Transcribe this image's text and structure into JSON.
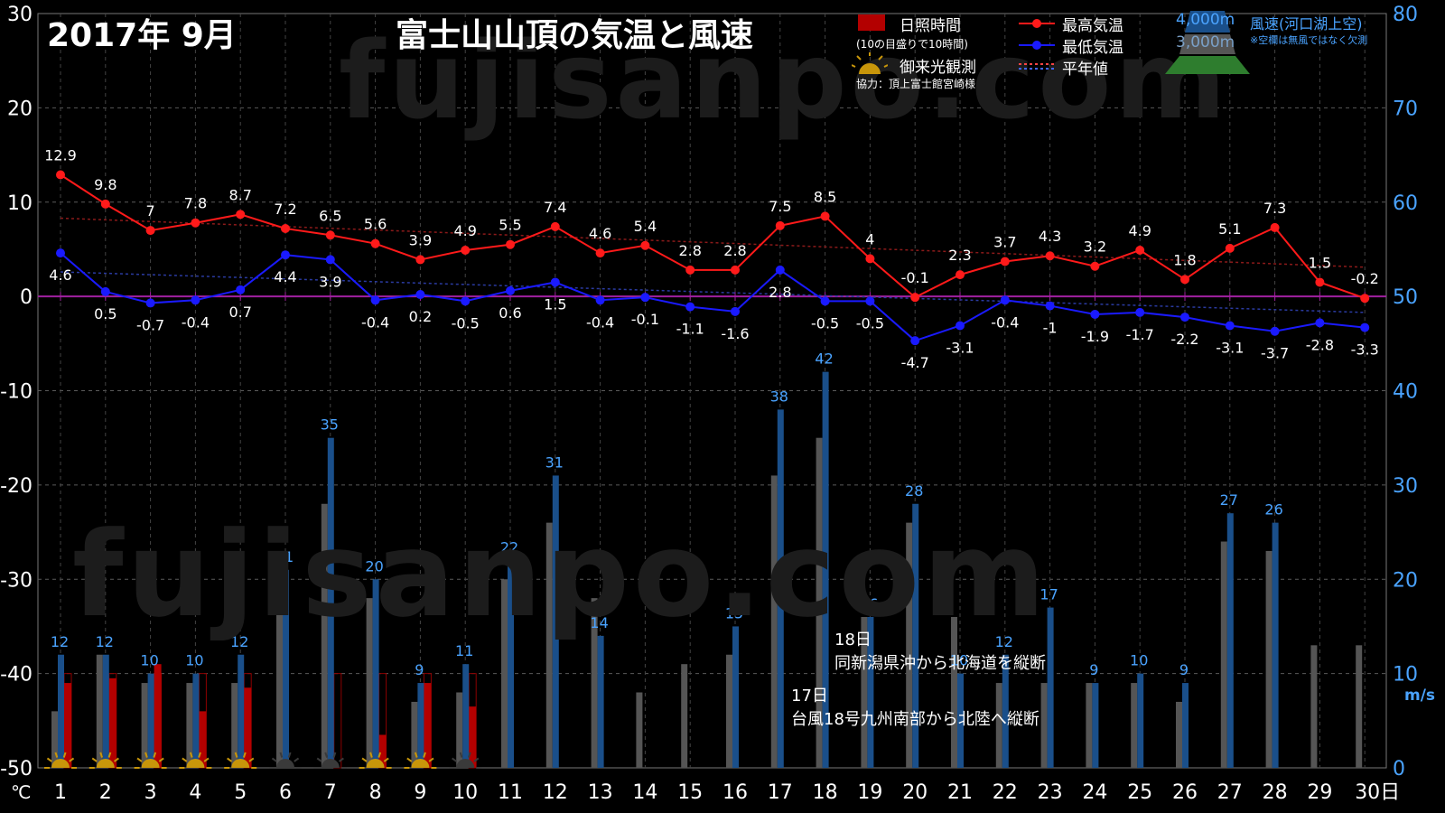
{
  "header": {
    "period": "2017年  9月",
    "title": "富士山山頂の気温と風速"
  },
  "legend": {
    "sunshine": "日照時間",
    "sunshine_note": "(10の目盛りで10時間)",
    "goraiko": "御来光観測",
    "cooperation": "協力：頂上富士館宮崎様",
    "max_temp": "最高気温",
    "min_temp": "最低気温",
    "normal": "平年値",
    "alt_4000": "4,000m",
    "alt_3000": "3,000m",
    "wind": "風速(河口湖上空)",
    "wind_note": "※空欄は無風ではなく欠測",
    "colors": {
      "max": "#ff1a1a",
      "min": "#1a1aff",
      "sunshine": "#b30000",
      "wind4000": "#1a4f8a",
      "wind3000": "#555555",
      "mountain": "#2e7d2e"
    }
  },
  "watermark": "fujisanpo.com",
  "annotations": [
    {
      "line1": "18日",
      "line2": "同新潟県沖から北海道を縦断"
    },
    {
      "line1": "17日",
      "line2": "台風18号九州南部から北陸へ縦断"
    }
  ],
  "chart_data": {
    "type": "line+bar",
    "x_unit_label": "日",
    "left_unit": "℃",
    "right_unit": "m/s",
    "days": [
      1,
      2,
      3,
      4,
      5,
      6,
      7,
      8,
      9,
      10,
      11,
      12,
      13,
      14,
      15,
      16,
      17,
      18,
      19,
      20,
      21,
      22,
      23,
      24,
      25,
      26,
      27,
      28,
      29,
      30
    ],
    "y_left": {
      "min": -50,
      "max": 30,
      "ticks": [
        30,
        20,
        10,
        0,
        -10,
        -20,
        -30,
        -40,
        -50
      ]
    },
    "y_right": {
      "min": 0,
      "max": 80,
      "ticks": [
        80,
        70,
        60,
        50,
        40,
        30,
        20,
        10,
        0
      ]
    },
    "max_temp": [
      12.9,
      9.8,
      7,
      7.8,
      8.7,
      7.2,
      6.5,
      5.6,
      3.9,
      4.9,
      5.5,
      7.4,
      4.6,
      5.4,
      2.8,
      2.8,
      7.5,
      8.5,
      4,
      -0.1,
      2.3,
      3.7,
      4.3,
      3.2,
      4.9,
      1.8,
      5.1,
      7.3,
      1.5,
      -0.2
    ],
    "min_temp": [
      4.6,
      0.5,
      -0.7,
      -0.4,
      0.7,
      4.4,
      3.9,
      -0.4,
      0.2,
      -0.5,
      0.6,
      1.5,
      -0.4,
      -0.1,
      -1.1,
      -1.6,
      2.8,
      -0.5,
      -0.5,
      -4.7,
      -3.1,
      -0.4,
      -1,
      -1.9,
      -1.7,
      -2.2,
      -3.1,
      -3.7,
      -2.8,
      -3.3
    ],
    "normal_max": [
      8.3,
      3.1
    ],
    "normal_min": [
      2.6,
      -1.7
    ],
    "wind_4000m": [
      12,
      12,
      10,
      10,
      12,
      21,
      35,
      20,
      9,
      11,
      22,
      31,
      14,
      null,
      null,
      15,
      38,
      42,
      16,
      28,
      10,
      12,
      17,
      9,
      10,
      9,
      27,
      26,
      null,
      null
    ],
    "wind_3000m": [
      6,
      12,
      9,
      9,
      9,
      17,
      28,
      18,
      7,
      8,
      20,
      26,
      18,
      8,
      11,
      12,
      31,
      35,
      16,
      26,
      16,
      9,
      9,
      9,
      9,
      7,
      24,
      23,
      13,
      13
    ],
    "sunshine_hours": [
      9,
      9.5,
      11,
      6,
      8.5,
      null,
      null,
      3.5,
      9,
      6.5,
      null,
      null,
      null,
      null,
      null,
      null,
      null,
      null,
      null,
      null,
      null,
      null,
      null,
      null,
      null,
      null,
      null,
      null,
      null,
      null
    ],
    "sunshine_frame": [
      1,
      2,
      3,
      4,
      5,
      7,
      8,
      9,
      10
    ],
    "goraiko_days": [
      1,
      2,
      3,
      4,
      5,
      6,
      7,
      8,
      9,
      10
    ]
  }
}
